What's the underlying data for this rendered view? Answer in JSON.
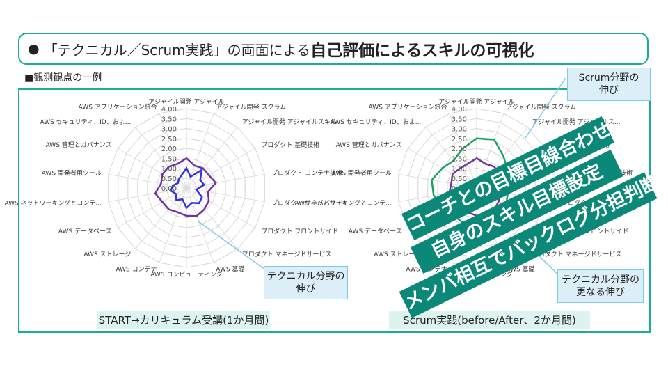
{
  "header": {
    "bullet": "●",
    "prefix": "「テクニカル／Scrum実践」の両面による",
    "highlight": "自己評価によるスキルの可視化",
    "accent_color": "#1aab9b"
  },
  "subhead": "■観測観点の一例",
  "left_caption": "START→カリキュラム受講(1か月間)",
  "right_caption": "Scrum実践(before/After、2か月間)",
  "callouts": {
    "technical_growth": "テクニカル分野の\n伸び",
    "scrum_growth": "Scrum分野の\n伸び",
    "technical_further": "テクニカル分野の\n更なる伸び"
  },
  "banners": [
    "コーチとの目標目線合わせ",
    "自身のスキル目標設定",
    "メンバ相互でバックログ分担判断"
  ],
  "chart_data": [
    {
      "type": "radar",
      "rlim": [
        0,
        4
      ],
      "ticks": [
        "0.00",
        "0.50",
        "1.00",
        "1.50",
        "2.00",
        "2.50",
        "3.00",
        "3.50",
        "4.00"
      ],
      "categories": [
        "アジャイル開発 アジャイル",
        "アジャイル開発 スクラム",
        "アジャイル開発 アジャイルスキル",
        "プロダクト 基礎技術",
        "プロダクト コンテナ技術",
        "プロダクト サーバパサイド",
        "プロダクト フロントサイド",
        "プロダクト マネージドサービス",
        "AWS 基礎",
        "AWS コンピューティング",
        "AWS コンテナ",
        "AWS ストレージ",
        "AWS データベース",
        "AWS ネットワーキングとコンテ...",
        "AWS 開発者用ツール",
        "AWS 管理とガバナンス",
        "AWS セキュリティ、ID、およ...",
        "AWS アプリケーション統合"
      ],
      "series": [
        {
          "color": "#3333dd",
          "values": [
            1.0,
            0.6,
            1.2,
            0.8,
            0.9,
            0.5,
            0.9,
            1.0,
            0.8,
            1.0,
            0.6,
            0.8,
            0.6,
            0.8,
            0.7,
            0.5,
            0.6,
            0.7
          ]
        },
        {
          "color": "#7030a0",
          "values": [
            1.5,
            1.2,
            1.3,
            1.3,
            1.5,
            1.1,
            1.3,
            1.4,
            1.5,
            1.4,
            1.3,
            1.4,
            1.4,
            1.6,
            1.3,
            1.4,
            1.4,
            1.3
          ]
        }
      ]
    },
    {
      "type": "radar",
      "rlim": [
        0,
        4
      ],
      "ticks": [
        "0.00",
        "0.50",
        "1.00",
        "1.50",
        "2.00",
        "2.50",
        "3.00",
        "3.50",
        "4.00"
      ],
      "categories": [
        "アジャイル開発 アジャイル",
        "アジャイル開発 スクラム",
        "アジャイル開発 アジャイルス...",
        "プロダクト 基礎技術",
        "プロダクト コンテナ技術",
        "プロダクト サーバパサイド",
        "プロダクト フロントサイド",
        "プロダクト マネージドサービス",
        "AWS 基礎",
        "AWS コンピューティング",
        "AWS コンテナ",
        "AWS ストレージ",
        "AWS データベース",
        "AWS ネットワーキングとコンテ...",
        "AWS 開発者用ツール",
        "AWS 管理とガバナンス",
        "AWS セキュリティ、ID、およ...",
        "AWS アプリケーション統合"
      ],
      "series": [
        {
          "color": "#7030a0",
          "values": [
            1.5,
            1.3,
            1.4,
            1.3,
            1.4,
            1.2,
            1.3,
            1.4,
            1.5,
            1.4,
            1.3,
            1.4,
            1.4,
            1.4,
            1.3,
            1.4,
            1.3,
            1.3
          ]
        },
        {
          "color": "#1aa060",
          "values": [
            2.5,
            2.6,
            2.1,
            1.8,
            1.9,
            1.6,
            1.7,
            1.8,
            2.2,
            2.0,
            1.9,
            1.8,
            2.0,
            2.2,
            2.3,
            2.0,
            1.8,
            2.1
          ]
        }
      ]
    }
  ]
}
